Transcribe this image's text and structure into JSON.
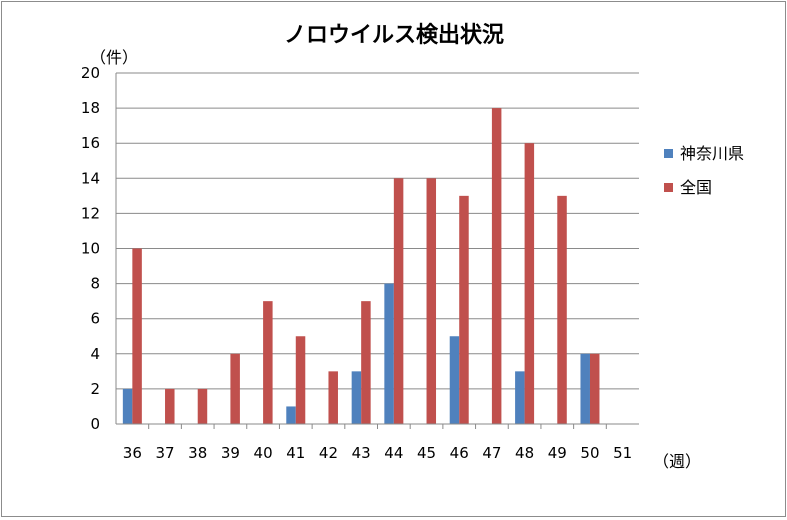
{
  "chart_data": {
    "type": "bar",
    "title": "ノロウイルス検出状況",
    "ylabel": "（件）",
    "xlabel": "（週）",
    "categories": [
      "36",
      "37",
      "38",
      "39",
      "40",
      "41",
      "42",
      "43",
      "44",
      "45",
      "46",
      "47",
      "48",
      "49",
      "50",
      "51"
    ],
    "ylim": [
      0,
      20
    ],
    "yticks": [
      0,
      2,
      4,
      6,
      8,
      10,
      12,
      14,
      16,
      18,
      20
    ],
    "grid": true,
    "legend_position": "right",
    "series": [
      {
        "name": "神奈川県",
        "color": "#4F81BD",
        "values": [
          2,
          0,
          0,
          0,
          0,
          1,
          0,
          3,
          8,
          0,
          5,
          0,
          3,
          0,
          4,
          0
        ]
      },
      {
        "name": "全国",
        "color": "#C0504D",
        "values": [
          10,
          2,
          2,
          4,
          7,
          5,
          3,
          7,
          14,
          14,
          13,
          18,
          16,
          13,
          4,
          0
        ]
      }
    ]
  }
}
